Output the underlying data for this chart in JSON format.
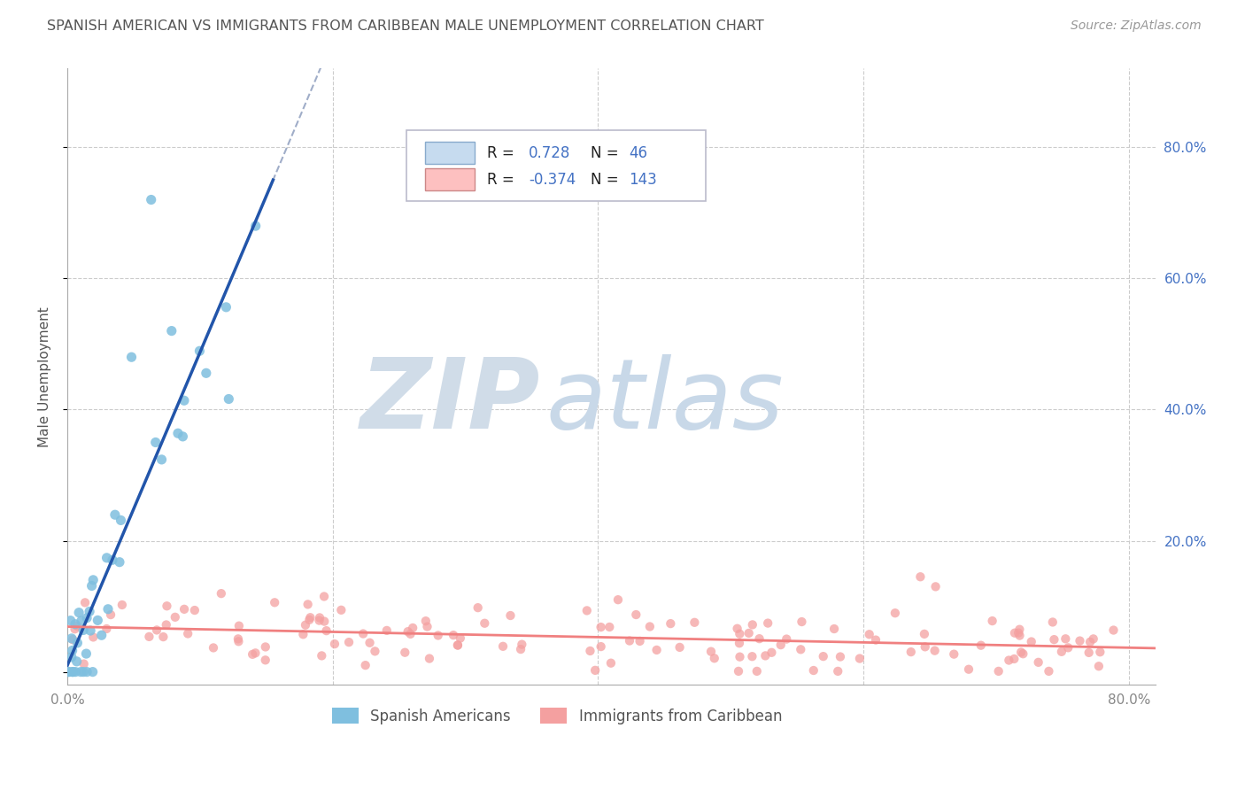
{
  "title": "SPANISH AMERICAN VS IMMIGRANTS FROM CARIBBEAN MALE UNEMPLOYMENT CORRELATION CHART",
  "source": "Source: ZipAtlas.com",
  "ylabel": "Male Unemployment",
  "xlim": [
    0.0,
    0.82
  ],
  "ylim": [
    -0.02,
    0.92
  ],
  "yticks": [
    0.0,
    0.2,
    0.4,
    0.6,
    0.8
  ],
  "ytick_labels_right": [
    "",
    "20.0%",
    "40.0%",
    "60.0%",
    "80.0%"
  ],
  "xticks": [
    0.0,
    0.2,
    0.4,
    0.6,
    0.8
  ],
  "xtick_labels": [
    "0.0%",
    "",
    "",
    "",
    "80.0%"
  ],
  "group1_label": "Spanish Americans",
  "group2_label": "Immigrants from Caribbean",
  "group1_R": 0.728,
  "group1_N": 46,
  "group2_R": -0.374,
  "group2_N": 143,
  "group1_color": "#7fbfdf",
  "group2_color": "#f4a0a0",
  "group1_color_light": "#c6dbef",
  "group2_color_light": "#fdc0c0",
  "bg_color": "#ffffff",
  "grid_color": "#cccccc",
  "title_color": "#555555",
  "watermark_zip_color": "#d0dce8",
  "watermark_atlas_color": "#c8d8e8",
  "legend_border_color": "#bbbbcc",
  "axis_color": "#4472c4",
  "regression1_color": "#2255aa",
  "regression2_color": "#f08080",
  "seed": 42
}
